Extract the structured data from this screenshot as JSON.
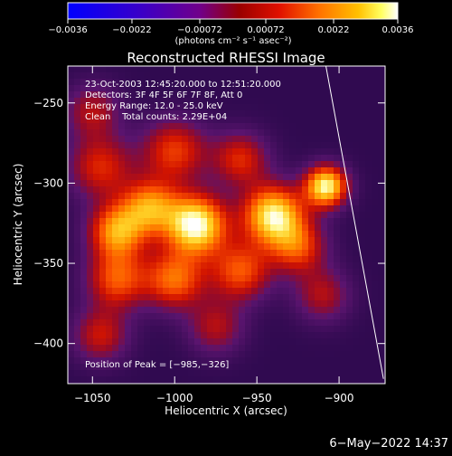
{
  "chart_data": {
    "type": "heatmap",
    "title": "Reconstructed RHESSI Image",
    "xlabel": "Heliocentric X (arcsec)",
    "ylabel": "Heliocentric Y (arcsec)",
    "xlim": [
      -1065,
      -872
    ],
    "ylim": [
      -425,
      -227
    ],
    "x_ticks": [
      -1050,
      -1000,
      -950,
      -900
    ],
    "y_ticks": [
      -250,
      -300,
      -350,
      -400
    ],
    "x_tick_labels": [
      "−1050",
      "−1000",
      "−950",
      "−900"
    ],
    "y_tick_labels": [
      "−250",
      "−300",
      "−350",
      "−400"
    ],
    "colorbar": {
      "range": [
        -0.0036,
        0.0036
      ],
      "ticks": [
        -0.0036,
        -0.0022,
        -0.00072,
        0.00072,
        0.0022,
        0.0036
      ],
      "tick_labels": [
        "−0.0036",
        "−0.0022",
        "−0.00072",
        "0.00072",
        "0.0022",
        "0.0036"
      ],
      "unit": "(photons cm⁻² s⁻¹ asec⁻²)",
      "colormap": "RHESSI rainbow (blue-purple-red-orange-yellow-white)"
    },
    "annotations": [
      "23-Oct-2003 12:45:20.000 to 12:51:20.000",
      "Detectors: 3F 4F 5F 6F 7F 8F, Att 0",
      "Energy Range: 12.0 - 25.0 keV",
      "Clean    Total counts: 2.29E+04"
    ],
    "peak_label": "Position of Peak = [−985,−326]",
    "peak_position": [
      -985,
      -326
    ],
    "sources": [
      {
        "x": -987,
        "y": -326,
        "intensity": 1.0,
        "sigma": 13
      },
      {
        "x": -940,
        "y": -320,
        "intensity": 0.92,
        "sigma": 13
      },
      {
        "x": -908,
        "y": -302,
        "intensity": 0.95,
        "sigma": 9
      },
      {
        "x": -1035,
        "y": -330,
        "intensity": 0.7,
        "sigma": 12
      },
      {
        "x": -1015,
        "y": -315,
        "intensity": 0.65,
        "sigma": 12
      },
      {
        "x": -1045,
        "y": -290,
        "intensity": 0.45,
        "sigma": 14
      },
      {
        "x": -1000,
        "y": -280,
        "intensity": 0.5,
        "sigma": 14
      },
      {
        "x": -960,
        "y": -285,
        "intensity": 0.45,
        "sigma": 12
      },
      {
        "x": -1035,
        "y": -360,
        "intensity": 0.55,
        "sigma": 13
      },
      {
        "x": -1000,
        "y": -360,
        "intensity": 0.6,
        "sigma": 13
      },
      {
        "x": -960,
        "y": -355,
        "intensity": 0.55,
        "sigma": 13
      },
      {
        "x": -925,
        "y": -340,
        "intensity": 0.5,
        "sigma": 12
      },
      {
        "x": -1045,
        "y": -395,
        "intensity": 0.4,
        "sigma": 12
      },
      {
        "x": -975,
        "y": -390,
        "intensity": 0.35,
        "sigma": 12
      },
      {
        "x": -910,
        "y": -370,
        "intensity": 0.35,
        "sigma": 12
      },
      {
        "x": -1050,
        "y": -255,
        "intensity": 0.35,
        "sigma": 12
      }
    ],
    "limb_line": {
      "from": [
        -908,
        -227
      ],
      "to": [
        -873,
        -422
      ]
    }
  },
  "footer": {
    "timestamp": "6−May−2022 14:37"
  },
  "colors": {
    "background": "#000000",
    "foreground": "#ffffff"
  }
}
